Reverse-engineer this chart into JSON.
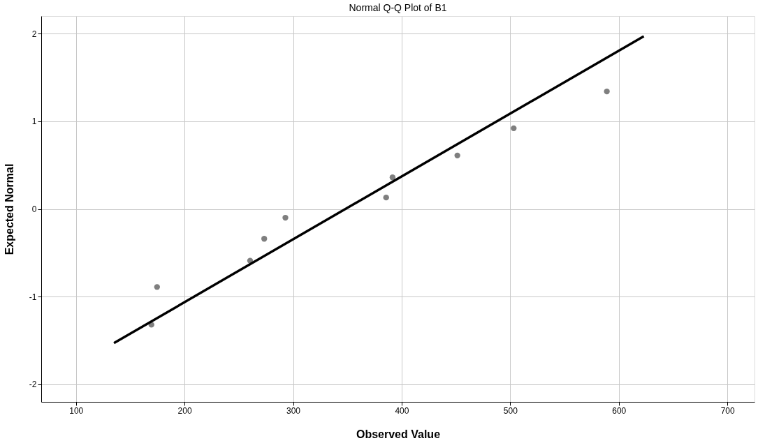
{
  "chart_data": {
    "type": "scatter",
    "title": "Normal Q-Q Plot of B1",
    "xlabel": "Observed Value",
    "ylabel": "Expected Normal",
    "series": [
      {
        "color": "#7f7f7f",
        "marker": "circle",
        "x": [
          169.5,
          174.7,
          260.4,
          273.4,
          292.9,
          385.7,
          391.6,
          451.3,
          503.2,
          589.0
        ],
        "values": [
          -1.32,
          -0.89,
          -0.59,
          -0.34,
          -0.1,
          0.13,
          0.36,
          0.61,
          0.92,
          1.34
        ]
      },
      {
        "type": "line",
        "color": "#000000",
        "x": [
          135,
          623
        ],
        "values": [
          -1.53,
          1.97
        ]
      }
    ],
    "xlim": [
      68,
      725
    ],
    "ylim": [
      -2.2,
      2.2
    ],
    "xticks": [
      100,
      200,
      300,
      400,
      500,
      600,
      700
    ],
    "yticks": [
      -2,
      -1,
      0,
      1,
      2
    ],
    "grid": true
  }
}
